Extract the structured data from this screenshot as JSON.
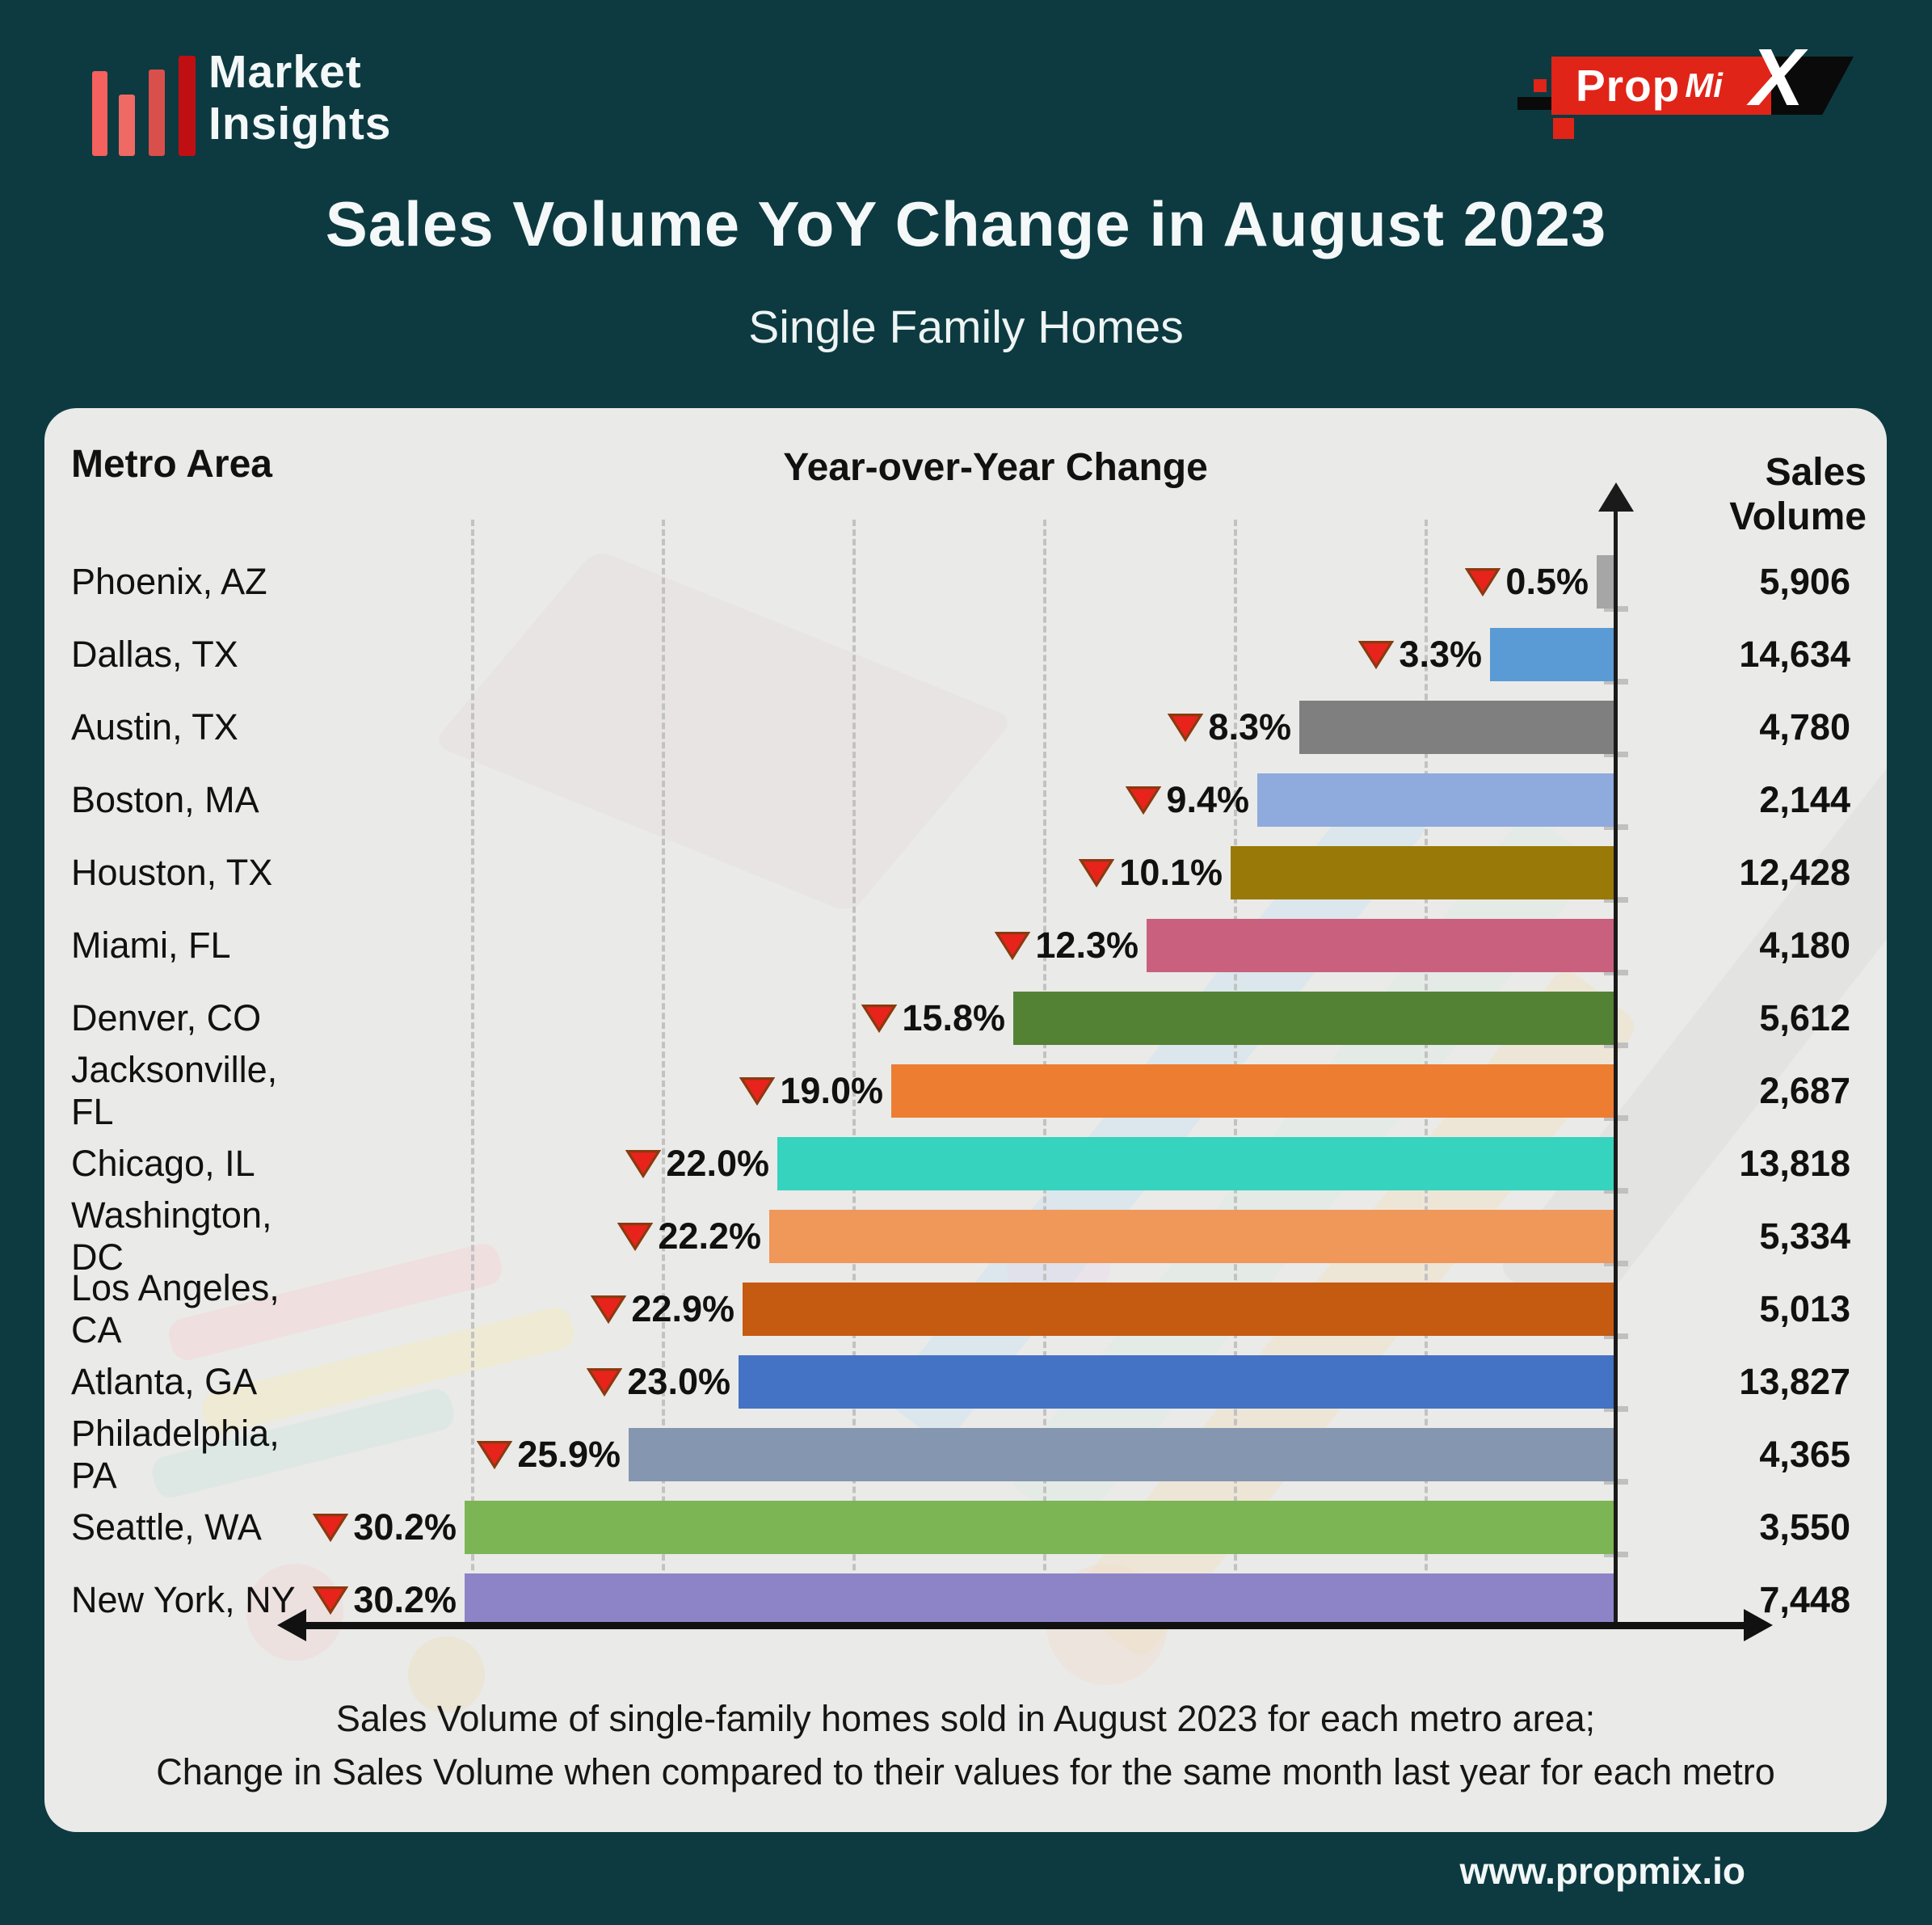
{
  "page": {
    "background_color": "#0c3a40",
    "panel_color": "#eaeae8",
    "accent_red": "#e02418"
  },
  "header": {
    "brand_line1": "Market",
    "brand_line2": "Insights",
    "brand_icon": "red-bar-chart-icon",
    "propmix": {
      "prop": "Prop",
      "mi": "Mi",
      "x": "X"
    }
  },
  "title": "Sales Volume YoY Change in August 2023",
  "subtitle": "Single Family Homes",
  "columns": {
    "metro": "Metro Area",
    "yoy": "Year-over-Year Change",
    "volume": "Sales Volume"
  },
  "caption_line1": "Sales Volume of single-family homes sold in August 2023 for each metro area;",
  "caption_line2": "Change in Sales Volume when compared to their values for the same month last year for each metro",
  "footer_url": "www.propmix.io",
  "watermark_ticks": [
    "10",
    "20",
    "30"
  ],
  "chart_data": {
    "type": "bar",
    "orientation": "horizontal",
    "title": "Sales Volume YoY Change in August 2023",
    "subtitle": "Single Family Homes",
    "x_axis": {
      "label": "Year-over-Year Change",
      "unit": "%",
      "range": [
        0,
        -34
      ],
      "gridlines_pct": [
        5,
        10,
        15,
        20,
        25,
        30
      ],
      "grid_style": "dashed"
    },
    "value_column_label": "Sales Volume",
    "marker": {
      "shape": "down-triangle",
      "color": "#e8231c",
      "meaning": "decline"
    },
    "categories": [
      "Phoenix, AZ",
      "Dallas, TX",
      "Austin, TX",
      "Boston, MA",
      "Houston, TX",
      "Miami, FL",
      "Denver, CO",
      "Jacksonville, FL",
      "Chicago, IL",
      "Washington, DC",
      "Los Angeles, CA",
      "Atlanta, GA",
      "Philadelphia, PA",
      "Seattle, WA",
      "New York, NY"
    ],
    "series": [
      {
        "name": "YoY Change (%)",
        "values": [
          -0.5,
          -3.3,
          -8.3,
          -9.4,
          -10.1,
          -12.3,
          -15.8,
          -19.0,
          -22.0,
          -22.2,
          -22.9,
          -23.0,
          -25.9,
          -30.2,
          -30.2
        ]
      },
      {
        "name": "Sales Volume",
        "values": [
          5906,
          14634,
          4780,
          2144,
          12428,
          4180,
          5612,
          2687,
          13818,
          5334,
          5013,
          13827,
          4365,
          3550,
          7448
        ]
      }
    ],
    "rows": [
      {
        "metro": "Phoenix, AZ",
        "yoy_pct": 0.5,
        "yoy_label": "0.5%",
        "volume": "5,906",
        "color": "#a6a6a6"
      },
      {
        "metro": "Dallas, TX",
        "yoy_pct": 3.3,
        "yoy_label": "3.3%",
        "volume": "14,634",
        "color": "#5b9bd5"
      },
      {
        "metro": "Austin, TX",
        "yoy_pct": 8.3,
        "yoy_label": "8.3%",
        "volume": "4,780",
        "color": "#7f7f7f"
      },
      {
        "metro": "Boston, MA",
        "yoy_pct": 9.4,
        "yoy_label": "9.4%",
        "volume": "2,144",
        "color": "#8faadc"
      },
      {
        "metro": "Houston, TX",
        "yoy_pct": 10.1,
        "yoy_label": "10.1%",
        "volume": "12,428",
        "color": "#997a08"
      },
      {
        "metro": "Miami, FL",
        "yoy_pct": 12.3,
        "yoy_label": "12.3%",
        "volume": "4,180",
        "color": "#c9607e"
      },
      {
        "metro": "Denver, CO",
        "yoy_pct": 15.8,
        "yoy_label": "15.8%",
        "volume": "5,612",
        "color": "#548235"
      },
      {
        "metro": "Jacksonville, FL",
        "yoy_pct": 19.0,
        "yoy_label": "19.0%",
        "volume": "2,687",
        "color": "#ed7d31"
      },
      {
        "metro": "Chicago, IL",
        "yoy_pct": 22.0,
        "yoy_label": "22.0%",
        "volume": "13,818",
        "color": "#36d3be"
      },
      {
        "metro": "Washington, DC",
        "yoy_pct": 22.2,
        "yoy_label": "22.2%",
        "volume": "5,334",
        "color": "#f0975a"
      },
      {
        "metro": "Los Angeles, CA",
        "yoy_pct": 22.9,
        "yoy_label": "22.9%",
        "volume": "5,013",
        "color": "#c55a11"
      },
      {
        "metro": "Atlanta, GA",
        "yoy_pct": 23.0,
        "yoy_label": "23.0%",
        "volume": "13,827",
        "color": "#4472c4"
      },
      {
        "metro": "Philadelphia, PA",
        "yoy_pct": 25.9,
        "yoy_label": "25.9%",
        "volume": "4,365",
        "color": "#8496b0"
      },
      {
        "metro": "Seattle, WA",
        "yoy_pct": 30.2,
        "yoy_label": "30.2%",
        "volume": "3,550",
        "color": "#7cb553"
      },
      {
        "metro": "New York, NY",
        "yoy_pct": 30.2,
        "yoy_label": "30.2%",
        "volume": "7,448",
        "color": "#8d84c8"
      }
    ],
    "footnote": "Sales Volume of single-family homes sold in August 2023 for each metro area; Change in Sales Volume when compared to their values for the same month last year for each metro"
  }
}
